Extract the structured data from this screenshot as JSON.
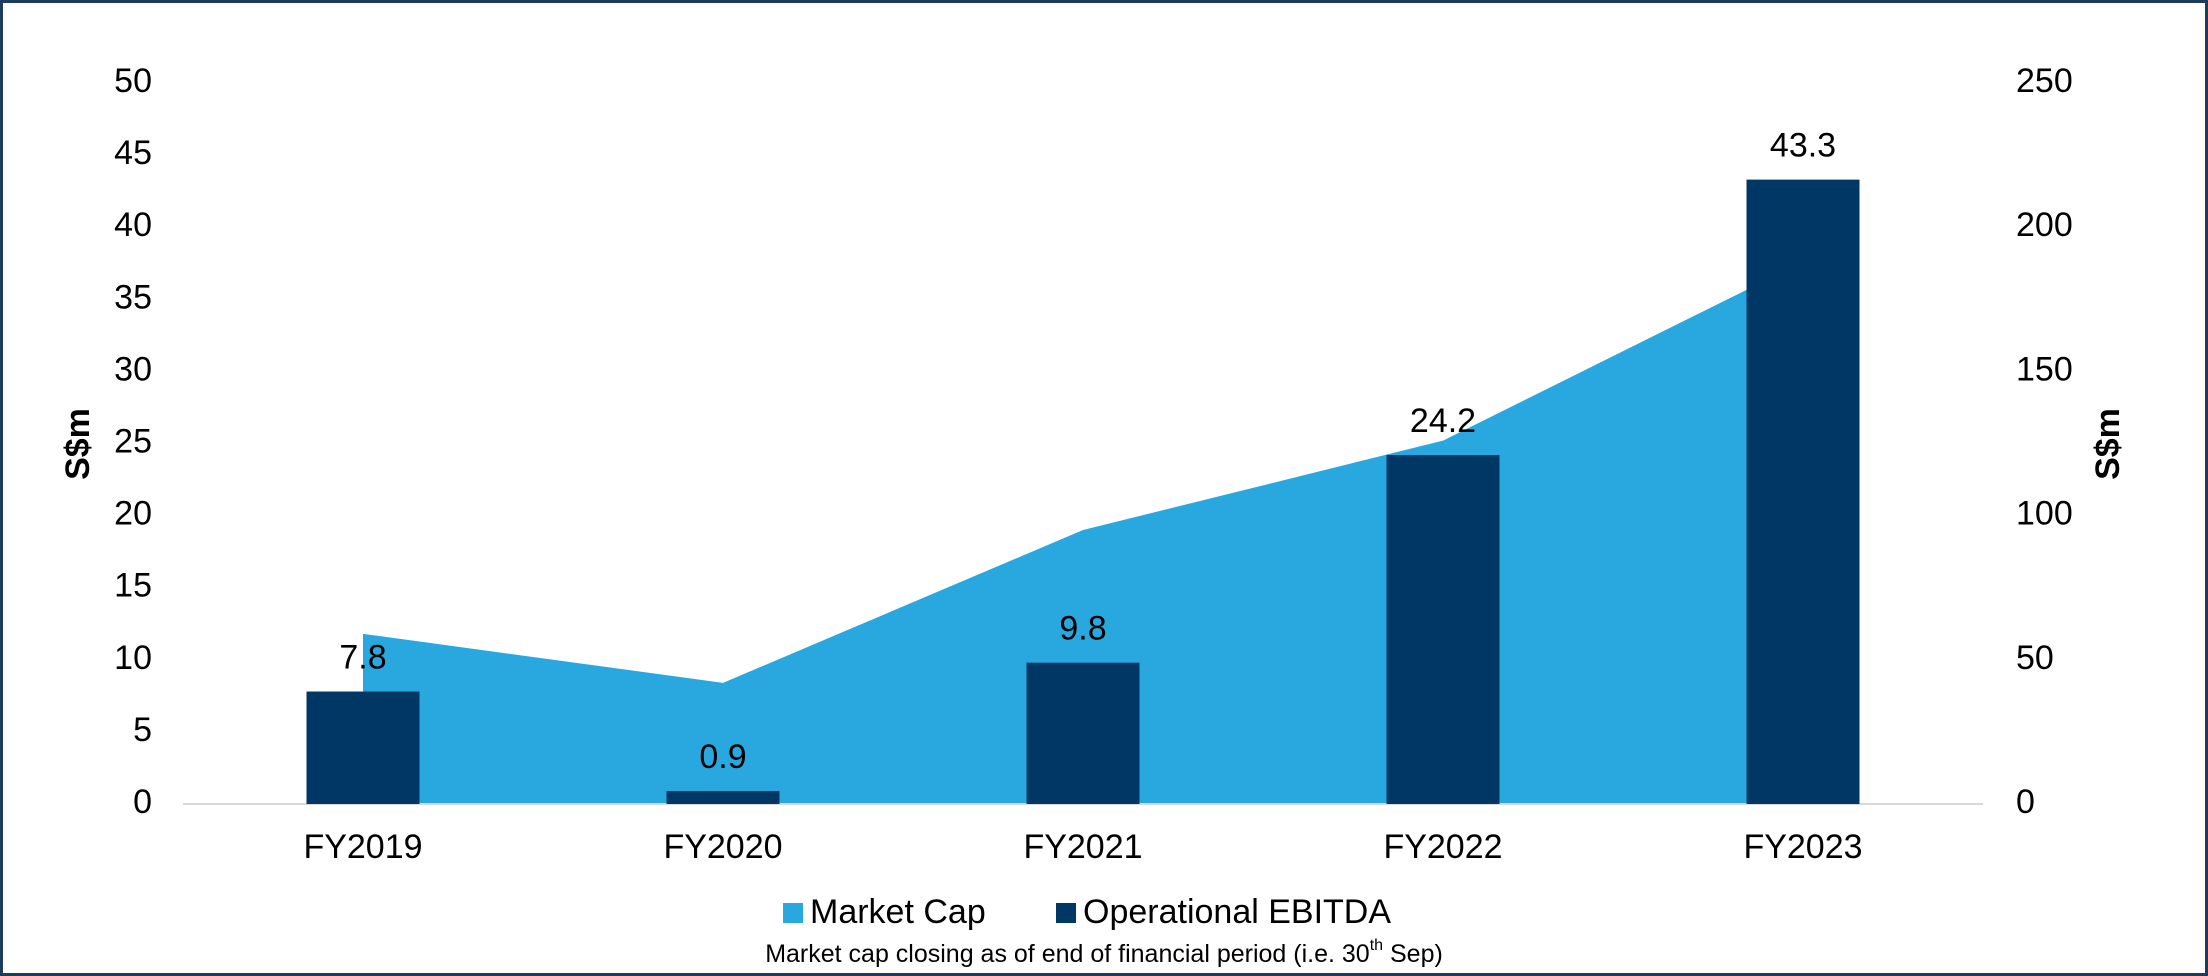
{
  "chart_data": {
    "type": "bar",
    "categories": [
      "FY2019",
      "FY2020",
      "FY2021",
      "FY2022",
      "FY2023"
    ],
    "series": [
      {
        "name": "Market Cap",
        "type": "area",
        "axis": "y2",
        "color": "#29a8e0",
        "values": [
          59,
          42,
          95,
          126,
          188
        ]
      },
      {
        "name": "Operational EBITDA",
        "type": "bar",
        "color": "#003764",
        "values": [
          7.8,
          0.9,
          9.8,
          24.2,
          43.3
        ]
      }
    ],
    "ylim": [
      0,
      50
    ],
    "yticks": [
      0,
      5,
      10,
      15,
      20,
      25,
      30,
      35,
      40,
      45,
      50
    ],
    "y2lim": [
      0,
      250
    ],
    "y2ticks": [
      0,
      50,
      100,
      150,
      200,
      250
    ],
    "ylabel": "S$m",
    "y2label": "S$m",
    "grid": false,
    "legend": "bottom",
    "footnote": {
      "text": "Market cap closing as of end of financial period (i.e. 30",
      "sup": "th",
      "tail": " Sep)"
    }
  }
}
